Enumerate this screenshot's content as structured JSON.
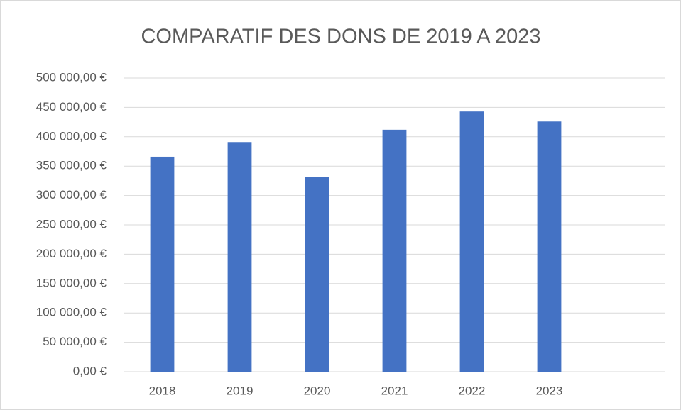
{
  "chart_data": {
    "type": "bar",
    "title": "COMPARATIF DES DONS DE 2019 A 2023",
    "categories": [
      "2018",
      "2019",
      "2020",
      "2021",
      "2022",
      "2023",
      null
    ],
    "values": [
      366000,
      391000,
      332000,
      412000,
      443000,
      426000,
      null
    ],
    "color": "#4472c4",
    "ylim": [
      0,
      500000
    ],
    "yticks": [
      {
        "value": 0,
        "label": "0,00 €"
      },
      {
        "value": 50000,
        "label": "50 000,00 €"
      },
      {
        "value": 100000,
        "label": "100 000,00 €"
      },
      {
        "value": 150000,
        "label": "150 000,00 €"
      },
      {
        "value": 200000,
        "label": "200 000,00 €"
      },
      {
        "value": 250000,
        "label": "250 000,00 €"
      },
      {
        "value": 300000,
        "label": "300 000,00 €"
      },
      {
        "value": 350000,
        "label": "350 000,00 €"
      },
      {
        "value": 400000,
        "label": "400 000,00 €"
      },
      {
        "value": 450000,
        "label": "450 000,00 €"
      },
      {
        "value": 500000,
        "label": "500 000,00 €"
      }
    ],
    "grid": true
  }
}
